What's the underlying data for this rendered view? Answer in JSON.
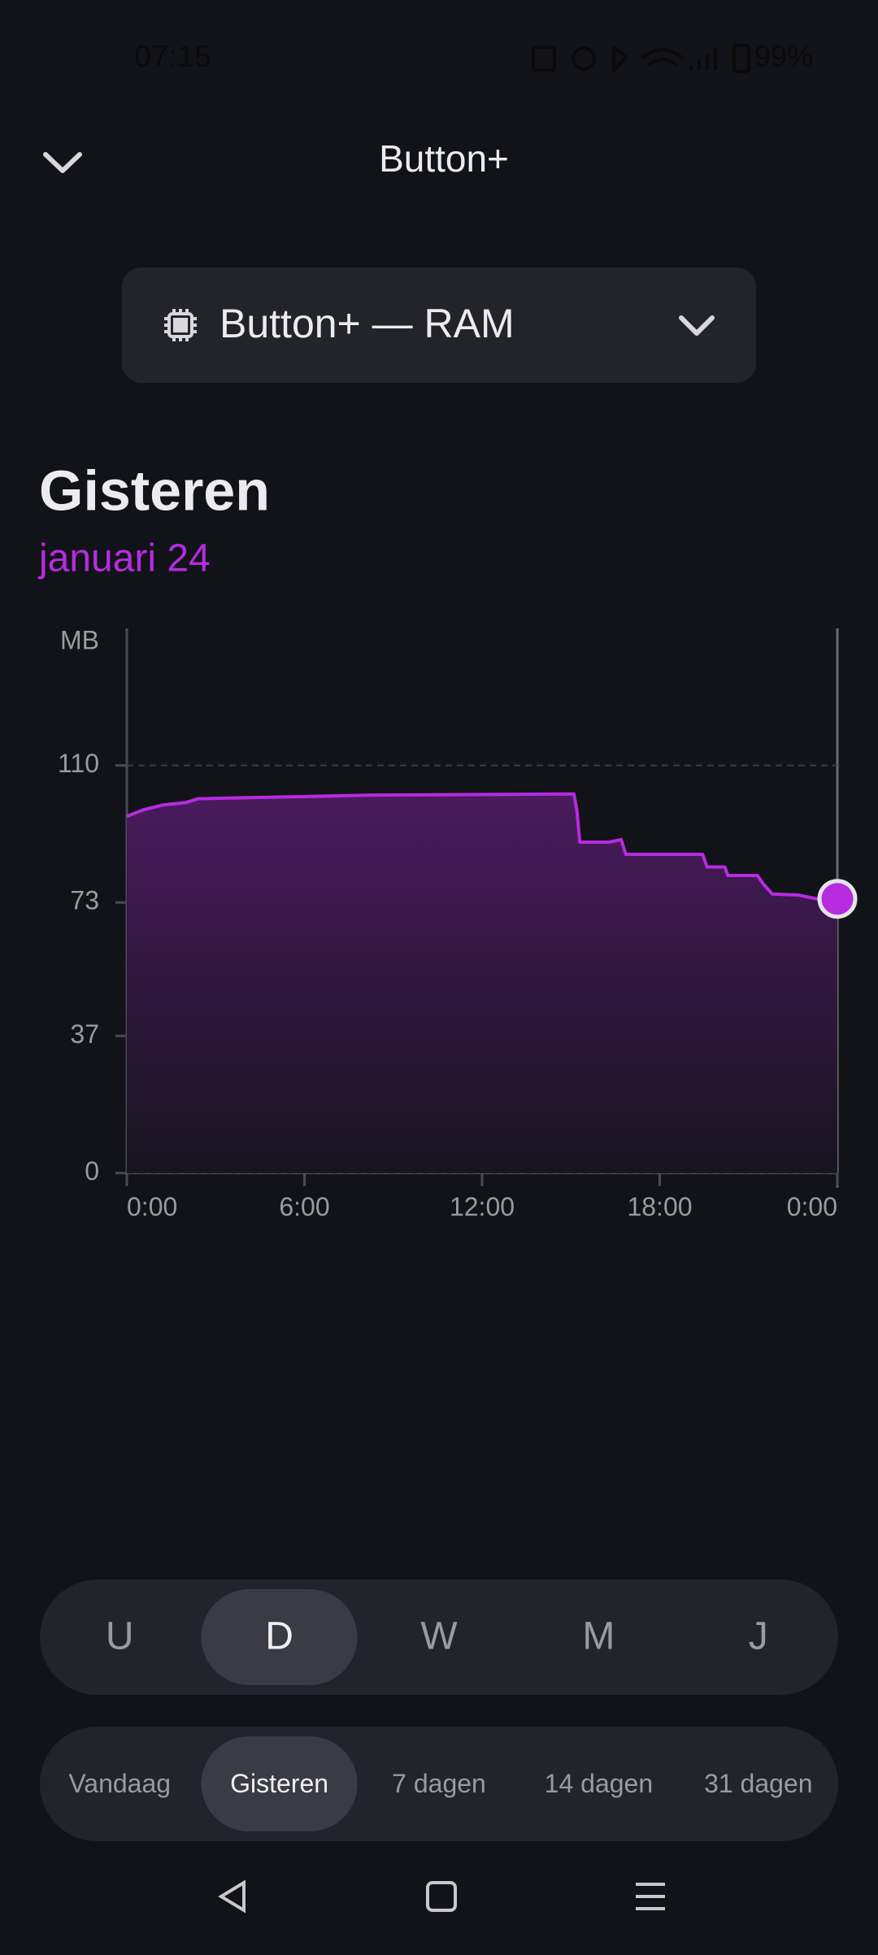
{
  "status_bar": {
    "time": "07:15",
    "battery": "99%"
  },
  "header": {
    "title": "Button+"
  },
  "selector": {
    "label": "Button+ — RAM"
  },
  "heading": {
    "title": "Gisteren",
    "date": "januari 24"
  },
  "chart_data": {
    "type": "area",
    "y_label": "MB",
    "x": [
      0,
      0.55,
      1.2,
      2.0,
      2.4,
      4.1,
      8.3,
      15.1,
      15.2,
      15.3,
      16.3,
      16.7,
      16.85,
      19.45,
      19.6,
      20.2,
      20.3,
      21.3,
      21.5,
      21.8,
      22.7,
      23.3,
      24
    ],
    "values": [
      96.3,
      98,
      99.3,
      100,
      101,
      101.3,
      102,
      102.3,
      98,
      89.3,
      89.3,
      90,
      86,
      86,
      82.6,
      82.6,
      80.3,
      80.3,
      78,
      75.3,
      75,
      74,
      74
    ],
    "color": "#b62be0",
    "xlim": [
      0,
      24
    ],
    "xticks": [
      {
        "value": 0,
        "label": "0:00"
      },
      {
        "value": 6,
        "label": "6:00"
      },
      {
        "value": 12,
        "label": "12:00"
      },
      {
        "value": 18,
        "label": "18:00"
      },
      {
        "value": 24,
        "label": "0:00"
      }
    ],
    "ylim": [
      0,
      147
    ],
    "yticks": [
      0,
      37,
      73,
      110
    ],
    "grid": true
  },
  "granularity": {
    "options": [
      "U",
      "D",
      "W",
      "M",
      "J"
    ],
    "selected": 1
  },
  "period": {
    "options": [
      "Vandaag",
      "Gisteren",
      "7 dagen",
      "14 dagen",
      "31 dagen"
    ],
    "selected": 1
  }
}
